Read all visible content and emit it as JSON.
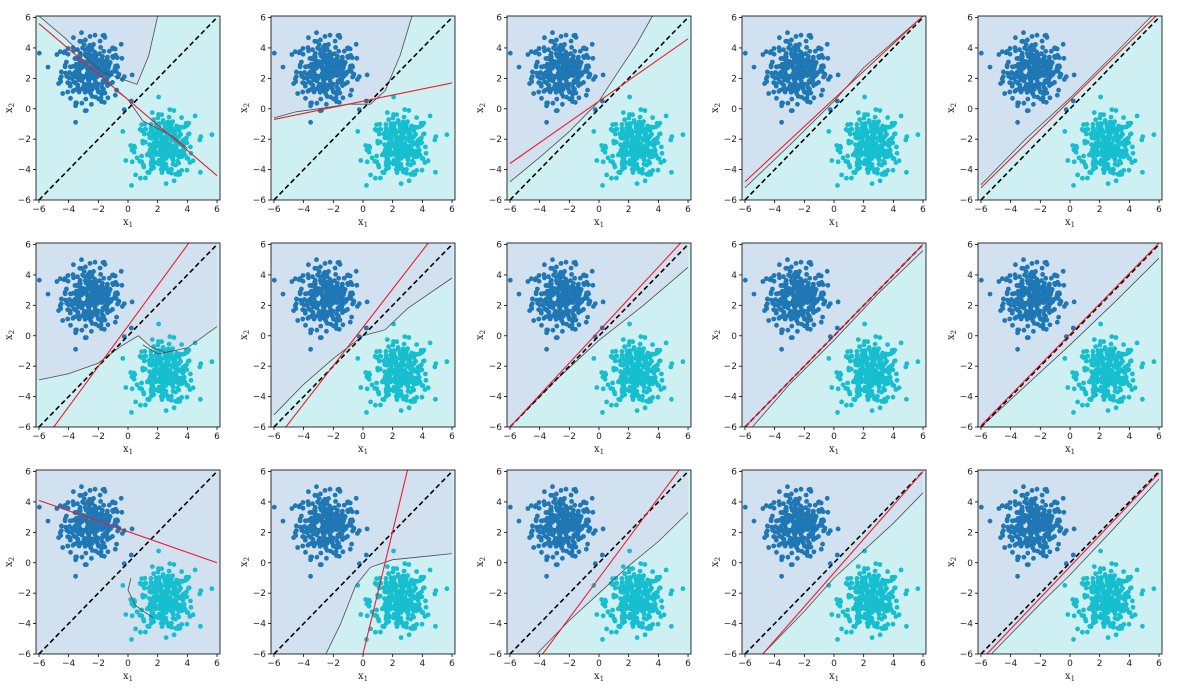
{
  "figure": {
    "grid_rows": 3,
    "grid_cols": 5
  },
  "colors": {
    "class0_point": "#1f77b4",
    "class1_point": "#17becf",
    "region0_fill": "#d2e1f0",
    "region1_fill": "#cff0f2",
    "boundary_line": "#4d4d4d",
    "learned_line": "#e8202a",
    "true_line": "#000000"
  },
  "axes": {
    "xlabel": "x",
    "xlabel_sub": "1",
    "ylabel": "x",
    "ylabel_sub": "2",
    "xlim": [
      -6.2,
      6.2
    ],
    "ylim": [
      -6.0,
      6.1
    ],
    "xticks": [
      "−6",
      "−4",
      "−2",
      "0",
      "2",
      "4",
      "6"
    ],
    "yticks": [
      "−6",
      "−4",
      "−2",
      "0",
      "2",
      "4",
      "6"
    ]
  },
  "chart_data": [
    {
      "type": "scatter",
      "panel": 1,
      "clusters": [
        {
          "label": 0,
          "center": [
            -2.5,
            2.5
          ],
          "std": 1.0
        },
        {
          "label": 1,
          "center": [
            2.5,
            -2.5
          ],
          "std": 1.0
        }
      ],
      "true_boundary": [
        [
          -6,
          -6
        ],
        [
          6,
          6
        ]
      ],
      "learned_line": [
        [
          -6,
          5.6
        ],
        [
          6,
          -4.4
        ]
      ],
      "decision_boundary": [
        [
          -6,
          6.1
        ],
        [
          -4.3,
          4.7
        ],
        [
          -2.8,
          3.3
        ],
        [
          -1.7,
          2.4
        ],
        [
          -0.8,
          2.1
        ],
        [
          0.6,
          1.6
        ],
        [
          1.4,
          3.5
        ],
        [
          2.0,
          6.1
        ]
      ],
      "boundary_detail": [
        [
          -0.8,
          1.2
        ],
        [
          0.0,
          0.6
        ],
        [
          1.0,
          -0.8
        ],
        [
          2.0,
          -1.3
        ],
        [
          3.0,
          -1.8
        ],
        [
          4.0,
          -2.6
        ]
      ],
      "grid": false,
      "legend": "none"
    },
    {
      "type": "scatter",
      "panel": 2,
      "clusters": [
        {
          "label": 0,
          "center": [
            -2.5,
            2.5
          ],
          "std": 1.0
        },
        {
          "label": 1,
          "center": [
            2.5,
            -2.5
          ],
          "std": 1.0
        }
      ],
      "true_boundary": [
        [
          -6,
          -6
        ],
        [
          6,
          6
        ]
      ],
      "learned_line": [
        [
          -6,
          -0.7
        ],
        [
          6,
          1.7
        ]
      ],
      "decision_boundary": [
        [
          -6,
          -0.6
        ],
        [
          -4.5,
          -0.2
        ],
        [
          -3.0,
          0.0
        ],
        [
          -1.0,
          0.3
        ],
        [
          0.5,
          0.3
        ],
        [
          1.5,
          1.2
        ],
        [
          2.5,
          3.5
        ],
        [
          3.3,
          6.1
        ]
      ],
      "boundary_detail": [],
      "grid": false,
      "legend": "none"
    },
    {
      "type": "scatter",
      "panel": 3,
      "clusters": [
        {
          "label": 0,
          "center": [
            -2.5,
            2.5
          ],
          "std": 1.0
        },
        {
          "label": 1,
          "center": [
            2.5,
            -2.5
          ],
          "std": 1.0
        }
      ],
      "true_boundary": [
        [
          -6,
          -6
        ],
        [
          6,
          6
        ]
      ],
      "learned_line": [
        [
          -6,
          -3.6
        ],
        [
          6,
          4.6
        ]
      ],
      "decision_boundary": [
        [
          -6,
          -4.8
        ],
        [
          -4.0,
          -3.2
        ],
        [
          -2.0,
          -1.5
        ],
        [
          0.0,
          0.5
        ],
        [
          1.0,
          2.0
        ],
        [
          2.5,
          4.2
        ],
        [
          3.6,
          6.1
        ]
      ],
      "boundary_detail": [],
      "grid": false,
      "legend": "none"
    },
    {
      "type": "scatter",
      "panel": 4,
      "clusters": [
        {
          "label": 0,
          "center": [
            -2.5,
            2.5
          ],
          "std": 1.0
        },
        {
          "label": 1,
          "center": [
            2.5,
            -2.5
          ],
          "std": 1.0
        }
      ],
      "true_boundary": [
        [
          -6,
          -6
        ],
        [
          6,
          6
        ]
      ],
      "learned_line": [
        [
          -6,
          -4.8
        ],
        [
          6,
          6.1
        ]
      ],
      "decision_boundary": [
        [
          -6,
          -5.2
        ],
        [
          -3.0,
          -2.4
        ],
        [
          0.0,
          0.5
        ],
        [
          2.0,
          2.7
        ],
        [
          4.0,
          4.4
        ],
        [
          6.0,
          6.1
        ]
      ],
      "boundary_detail": [],
      "grid": false,
      "legend": "none"
    },
    {
      "type": "scatter",
      "panel": 5,
      "clusters": [
        {
          "label": 0,
          "center": [
            -2.5,
            2.5
          ],
          "std": 1.0
        },
        {
          "label": 1,
          "center": [
            2.5,
            -2.5
          ],
          "std": 1.0
        }
      ],
      "true_boundary": [
        [
          -6,
          -6
        ],
        [
          6,
          6
        ]
      ],
      "learned_line": [
        [
          -6,
          -5.2
        ],
        [
          6,
          6.3
        ]
      ],
      "decision_boundary": [
        [
          -6,
          -5.0
        ],
        [
          -3.0,
          -2.0
        ],
        [
          0.0,
          0.7
        ],
        [
          3.0,
          3.6
        ],
        [
          6.0,
          6.6
        ]
      ],
      "boundary_detail": [],
      "grid": false,
      "legend": "none"
    },
    {
      "type": "scatter",
      "panel": 6,
      "clusters": [
        {
          "label": 0,
          "center": [
            -2.5,
            2.5
          ],
          "std": 1.0
        },
        {
          "label": 1,
          "center": [
            2.5,
            -2.5
          ],
          "std": 1.0
        }
      ],
      "true_boundary": [
        [
          -6,
          -6
        ],
        [
          6,
          6
        ]
      ],
      "learned_line": [
        [
          -5.0,
          -6.0
        ],
        [
          4.1,
          6.1
        ]
      ],
      "decision_boundary": [
        [
          -6,
          -2.9
        ],
        [
          -4.0,
          -2.5
        ],
        [
          -2.0,
          -1.8
        ],
        [
          -0.5,
          -0.7
        ],
        [
          0.7,
          0.0
        ],
        [
          1.5,
          -0.7
        ],
        [
          2.5,
          -1.1
        ],
        [
          4.0,
          -0.8
        ],
        [
          6.0,
          0.6
        ]
      ],
      "boundary_detail": [
        [
          1.0,
          -0.6
        ],
        [
          2.0,
          -1.2
        ],
        [
          3.0,
          -1.0
        ]
      ],
      "grid": false,
      "legend": "none"
    },
    {
      "type": "scatter",
      "panel": 7,
      "clusters": [
        {
          "label": 0,
          "center": [
            -2.5,
            2.5
          ],
          "std": 1.0
        },
        {
          "label": 1,
          "center": [
            2.5,
            -2.5
          ],
          "std": 1.0
        }
      ],
      "true_boundary": [
        [
          -6,
          -6
        ],
        [
          6,
          6
        ]
      ],
      "learned_line": [
        [
          -5.2,
          -6.0
        ],
        [
          4.4,
          6.1
        ]
      ],
      "decision_boundary": [
        [
          -6,
          -5.2
        ],
        [
          -4.0,
          -3.2
        ],
        [
          -2.0,
          -1.5
        ],
        [
          0.0,
          0.0
        ],
        [
          1.5,
          0.4
        ],
        [
          3.0,
          1.8
        ],
        [
          6.0,
          3.8
        ]
      ],
      "boundary_detail": [],
      "grid": false,
      "legend": "none"
    },
    {
      "type": "scatter",
      "panel": 8,
      "clusters": [
        {
          "label": 0,
          "center": [
            -2.5,
            2.5
          ],
          "std": 1.0
        },
        {
          "label": 1,
          "center": [
            2.5,
            -2.5
          ],
          "std": 1.0
        }
      ],
      "true_boundary": [
        [
          -6,
          -6
        ],
        [
          6,
          6
        ]
      ],
      "learned_line": [
        [
          -6,
          -6.0
        ],
        [
          5.5,
          6.1
        ]
      ],
      "decision_boundary": [
        [
          -6,
          -6.0
        ],
        [
          -3.0,
          -3.0
        ],
        [
          0.0,
          -0.3
        ],
        [
          3.0,
          2.0
        ],
        [
          6.0,
          4.5
        ]
      ],
      "boundary_detail": [],
      "grid": false,
      "legend": "none"
    },
    {
      "type": "scatter",
      "panel": 9,
      "clusters": [
        {
          "label": 0,
          "center": [
            -2.5,
            2.5
          ],
          "std": 1.0
        },
        {
          "label": 1,
          "center": [
            2.5,
            -2.5
          ],
          "std": 1.0
        }
      ],
      "true_boundary": [
        [
          -6,
          -6
        ],
        [
          6,
          6
        ]
      ],
      "learned_line": [
        [
          -6,
          -6.0
        ],
        [
          6,
          6.0
        ]
      ],
      "decision_boundary": [
        [
          -5.5,
          -6.0
        ],
        [
          -3.0,
          -3.2
        ],
        [
          0.0,
          -0.3
        ],
        [
          3.0,
          2.8
        ],
        [
          6.0,
          5.6
        ]
      ],
      "boundary_detail": [],
      "grid": false,
      "legend": "none"
    },
    {
      "type": "scatter",
      "panel": 10,
      "clusters": [
        {
          "label": 0,
          "center": [
            -2.5,
            2.5
          ],
          "std": 1.0
        },
        {
          "label": 1,
          "center": [
            2.5,
            -2.5
          ],
          "std": 1.0
        }
      ],
      "true_boundary": [
        [
          -6,
          -6
        ],
        [
          6,
          6
        ]
      ],
      "learned_line": [
        [
          -6,
          -5.9
        ],
        [
          6,
          6.1
        ]
      ],
      "decision_boundary": [
        [
          -6,
          -6.0
        ],
        [
          -3.0,
          -3.3
        ],
        [
          0.0,
          -0.6
        ],
        [
          3.0,
          2.2
        ],
        [
          6.0,
          5.1
        ]
      ],
      "boundary_detail": [],
      "grid": false,
      "legend": "none"
    },
    {
      "type": "scatter",
      "panel": 11,
      "clusters": [
        {
          "label": 0,
          "center": [
            -2.5,
            2.5
          ],
          "std": 1.0
        },
        {
          "label": 1,
          "center": [
            2.5,
            -2.5
          ],
          "std": 1.0
        }
      ],
      "true_boundary": [
        [
          -6,
          -6
        ],
        [
          6,
          6
        ]
      ],
      "learned_line": [
        [
          -6,
          4.1
        ],
        [
          6,
          0.0
        ]
      ],
      "decision_boundary": [],
      "boundary_detail": [
        [
          0.2,
          -1.0
        ],
        [
          0.0,
          -1.8
        ],
        [
          0.5,
          -2.8
        ],
        [
          1.2,
          -3.3
        ],
        [
          1.7,
          -3.6
        ]
      ],
      "grid": false,
      "legend": "none"
    },
    {
      "type": "scatter",
      "panel": 12,
      "clusters": [
        {
          "label": 0,
          "center": [
            -2.5,
            2.5
          ],
          "std": 1.0
        },
        {
          "label": 1,
          "center": [
            2.5,
            -2.5
          ],
          "std": 1.0
        }
      ],
      "true_boundary": [
        [
          -6,
          -6
        ],
        [
          6,
          6
        ]
      ],
      "learned_line": [
        [
          0.0,
          -6.0
        ],
        [
          3.0,
          6.1
        ]
      ],
      "decision_boundary": [
        [
          -2.5,
          -6.0
        ],
        [
          -1.5,
          -4.0
        ],
        [
          -0.5,
          -1.5
        ],
        [
          0.5,
          -0.3
        ],
        [
          2.0,
          0.2
        ],
        [
          4.0,
          0.4
        ],
        [
          6.0,
          0.6
        ]
      ],
      "boundary_detail": [],
      "grid": false,
      "legend": "none"
    },
    {
      "type": "scatter",
      "panel": 13,
      "clusters": [
        {
          "label": 0,
          "center": [
            -2.5,
            2.5
          ],
          "std": 1.0
        },
        {
          "label": 1,
          "center": [
            2.5,
            -2.5
          ],
          "std": 1.0
        }
      ],
      "true_boundary": [
        [
          -6,
          -6
        ],
        [
          6,
          6
        ]
      ],
      "learned_line": [
        [
          -3.8,
          -6.0
        ],
        [
          5.4,
          6.1
        ]
      ],
      "decision_boundary": [
        [
          -4.2,
          -6.0
        ],
        [
          -2.0,
          -3.8
        ],
        [
          0.0,
          -2.0
        ],
        [
          2.0,
          -0.2
        ],
        [
          4.0,
          1.4
        ],
        [
          6.0,
          3.3
        ]
      ],
      "boundary_detail": [],
      "grid": false,
      "legend": "none"
    },
    {
      "type": "scatter",
      "panel": 14,
      "clusters": [
        {
          "label": 0,
          "center": [
            -2.5,
            2.5
          ],
          "std": 1.0
        },
        {
          "label": 1,
          "center": [
            2.5,
            -2.5
          ],
          "std": 1.0
        }
      ],
      "true_boundary": [
        [
          -6,
          -6
        ],
        [
          6,
          6
        ]
      ],
      "learned_line": [
        [
          -4.8,
          -6.0
        ],
        [
          6,
          6.0
        ]
      ],
      "decision_boundary": [
        [
          -4.8,
          -6.0
        ],
        [
          -2.0,
          -3.2
        ],
        [
          0.0,
          -1.0
        ],
        [
          2.0,
          0.8
        ],
        [
          4.0,
          2.6
        ],
        [
          6.0,
          4.6
        ]
      ],
      "boundary_detail": [],
      "grid": false,
      "legend": "none"
    },
    {
      "type": "scatter",
      "panel": 15,
      "clusters": [
        {
          "label": 0,
          "center": [
            -2.5,
            2.5
          ],
          "std": 1.0
        },
        {
          "label": 1,
          "center": [
            2.5,
            -2.5
          ],
          "std": 1.0
        }
      ],
      "true_boundary": [
        [
          -6,
          -6
        ],
        [
          6,
          6
        ]
      ],
      "learned_line": [
        [
          -5.6,
          -6.0
        ],
        [
          6,
          5.9
        ]
      ],
      "decision_boundary": [
        [
          -5.3,
          -6.0
        ],
        [
          -2.0,
          -2.7
        ],
        [
          0.0,
          -0.8
        ],
        [
          3.0,
          2.3
        ],
        [
          6.0,
          5.5
        ]
      ],
      "boundary_detail": [],
      "grid": false,
      "legend": "none"
    }
  ]
}
